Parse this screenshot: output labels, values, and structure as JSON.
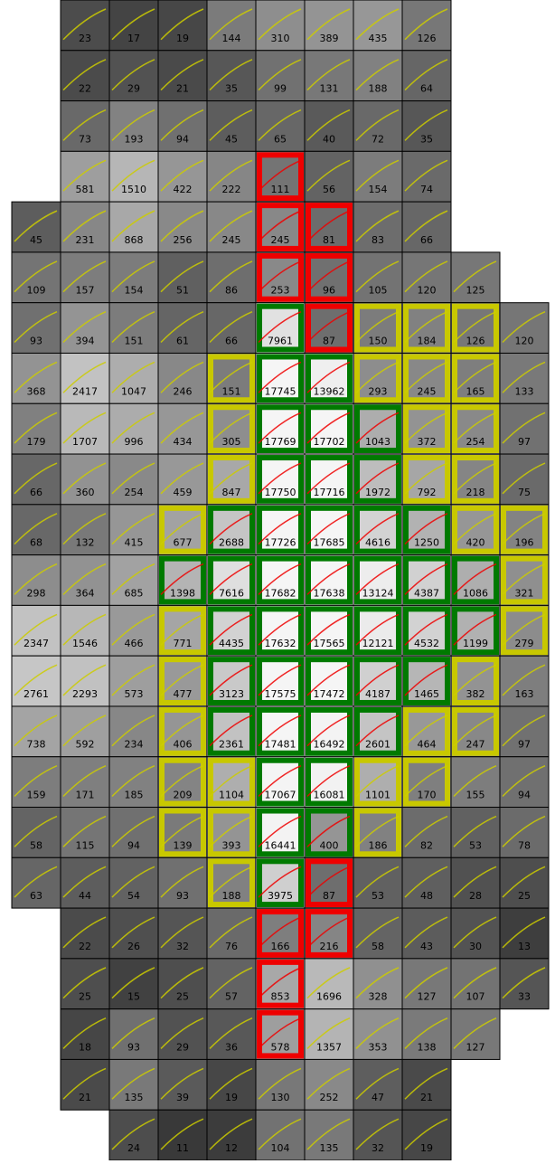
{
  "grid": {
    "rows": [
      [
        null,
        23,
        17,
        19,
        144,
        310,
        389,
        435,
        126,
        null,
        null
      ],
      [
        null,
        22,
        29,
        21,
        35,
        99,
        131,
        188,
        64,
        null,
        null
      ],
      [
        null,
        73,
        193,
        94,
        45,
        65,
        40,
        72,
        35,
        null,
        null
      ],
      [
        null,
        581,
        1510,
        422,
        222,
        111,
        56,
        154,
        74,
        null,
        null
      ],
      [
        45,
        231,
        868,
        256,
        245,
        245,
        81,
        83,
        66,
        null,
        null
      ],
      [
        109,
        157,
        154,
        51,
        86,
        253,
        96,
        105,
        120,
        125,
        null
      ],
      [
        93,
        394,
        151,
        61,
        66,
        7961,
        87,
        150,
        184,
        126,
        120
      ],
      [
        368,
        2417,
        1047,
        246,
        151,
        17745,
        13962,
        293,
        245,
        165,
        133
      ],
      [
        179,
        1707,
        996,
        434,
        305,
        17769,
        17702,
        1043,
        372,
        254,
        97
      ],
      [
        66,
        360,
        254,
        459,
        847,
        17750,
        17716,
        1972,
        792,
        218,
        75
      ],
      [
        68,
        132,
        415,
        677,
        2688,
        17726,
        17685,
        4616,
        1250,
        420,
        196
      ],
      [
        298,
        364,
        685,
        1398,
        7616,
        17682,
        17638,
        13124,
        4387,
        1086,
        321
      ],
      [
        2347,
        1546,
        466,
        771,
        4435,
        17632,
        17565,
        12121,
        4532,
        1199,
        279
      ],
      [
        2761,
        2293,
        573,
        477,
        3123,
        17575,
        17472,
        4187,
        1465,
        382,
        163
      ],
      [
        738,
        592,
        234,
        406,
        2361,
        17481,
        16492,
        2601,
        464,
        247,
        97
      ],
      [
        159,
        171,
        185,
        209,
        1104,
        17067,
        16081,
        1101,
        170,
        155,
        94
      ],
      [
        58,
        115,
        94,
        139,
        393,
        16441,
        400,
        186,
        82,
        53,
        78
      ],
      [
        63,
        44,
        54,
        93,
        188,
        3975,
        87,
        53,
        48,
        28,
        25
      ],
      [
        null,
        22,
        26,
        32,
        76,
        166,
        216,
        58,
        43,
        30,
        13
      ],
      [
        null,
        25,
        15,
        25,
        57,
        853,
        1696,
        328,
        127,
        107,
        33
      ],
      [
        null,
        18,
        93,
        29,
        36,
        578,
        1357,
        353,
        138,
        127,
        null
      ],
      [
        null,
        21,
        135,
        39,
        19,
        130,
        252,
        47,
        21,
        null,
        null
      ],
      [
        null,
        null,
        24,
        11,
        12,
        104,
        135,
        32,
        19,
        null,
        null
      ]
    ],
    "status": [
      [
        null,
        "n",
        "n",
        "n",
        "n",
        "n",
        "n",
        "n",
        "n",
        null,
        null
      ],
      [
        null,
        "n",
        "n",
        "n",
        "n",
        "n",
        "n",
        "n",
        "n",
        null,
        null
      ],
      [
        null,
        "n",
        "n",
        "n",
        "n",
        "n",
        "n",
        "n",
        "n",
        null,
        null
      ],
      [
        null,
        "n",
        "n",
        "n",
        "n",
        "r",
        "n",
        "n",
        "n",
        null,
        null
      ],
      [
        "n",
        "n",
        "n",
        "n",
        "n",
        "r",
        "r",
        "n",
        "n",
        null,
        null
      ],
      [
        "n",
        "n",
        "n",
        "n",
        "n",
        "r",
        "r",
        "n",
        "n",
        "n",
        null
      ],
      [
        "n",
        "n",
        "n",
        "n",
        "n",
        "g",
        "r",
        "y",
        "y",
        "y",
        "n"
      ],
      [
        "n",
        "n",
        "n",
        "n",
        "y",
        "g",
        "g",
        "y",
        "y",
        "y",
        "n"
      ],
      [
        "n",
        "n",
        "n",
        "n",
        "y",
        "g",
        "g",
        "g",
        "y",
        "y",
        "n"
      ],
      [
        "n",
        "n",
        "n",
        "n",
        "y",
        "g",
        "g",
        "g",
        "y",
        "y",
        "n"
      ],
      [
        "n",
        "n",
        "n",
        "y",
        "g",
        "g",
        "g",
        "g",
        "g",
        "y",
        "y"
      ],
      [
        "n",
        "n",
        "n",
        "g",
        "g",
        "g",
        "g",
        "g",
        "g",
        "g",
        "y"
      ],
      [
        "n",
        "n",
        "n",
        "y",
        "g",
        "g",
        "g",
        "g",
        "g",
        "g",
        "y"
      ],
      [
        "n",
        "n",
        "n",
        "y",
        "g",
        "g",
        "g",
        "g",
        "g",
        "y",
        "n"
      ],
      [
        "n",
        "n",
        "n",
        "y",
        "g",
        "g",
        "g",
        "g",
        "y",
        "y",
        "n"
      ],
      [
        "n",
        "n",
        "n",
        "y",
        "y",
        "g",
        "g",
        "y",
        "y",
        "n",
        "n"
      ],
      [
        "n",
        "n",
        "n",
        "y",
        "y",
        "g",
        "g",
        "y",
        "n",
        "n",
        "n"
      ],
      [
        "n",
        "n",
        "n",
        "n",
        "y",
        "g",
        "r",
        "n",
        "n",
        "n",
        "n"
      ],
      [
        null,
        "n",
        "n",
        "n",
        "n",
        "r",
        "r",
        "n",
        "n",
        "n",
        "n"
      ],
      [
        null,
        "n",
        "n",
        "n",
        "n",
        "r",
        "n",
        "n",
        "n",
        "n",
        "n"
      ],
      [
        null,
        "n",
        "n",
        "n",
        "n",
        "r",
        "n",
        "n",
        "n",
        "n",
        null
      ],
      [
        null,
        "n",
        "n",
        "n",
        "n",
        "n",
        "n",
        "n",
        "n",
        null,
        null
      ],
      [
        null,
        null,
        "n",
        "n",
        "n",
        "n",
        "n",
        "n",
        "n",
        null,
        null
      ]
    ],
    "colors": {
      "n": "none",
      "y": "#c8c800",
      "g": "#007a00",
      "r": "#ee0000"
    }
  }
}
